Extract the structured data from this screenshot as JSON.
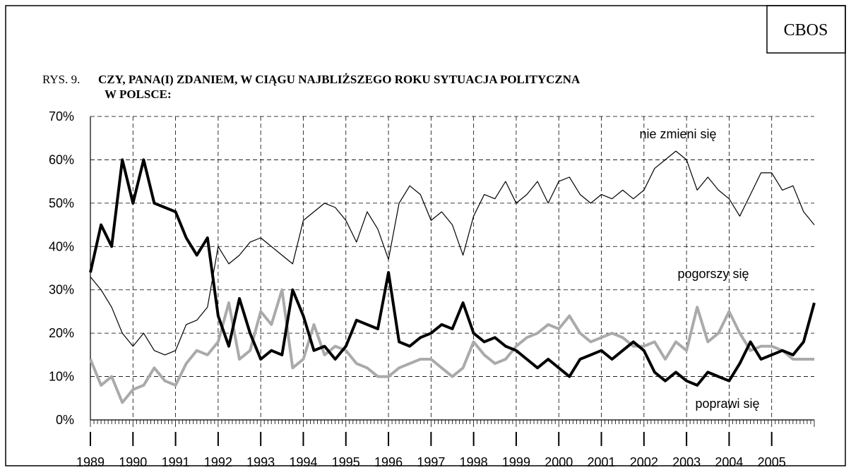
{
  "source": "CBOS",
  "chart_data": {
    "type": "line",
    "figure_label": "RYS. 9.",
    "title": [
      "CZY, PANA(I) ZDANIEM, W CIĄGU NAJBLIŻSZEGO ROKU SYTUACJA POLITYCZNA",
      "W POLSCE:"
    ],
    "x": [
      1989,
      1989.25,
      1989.5,
      1989.75,
      1990,
      1990.25,
      1990.5,
      1990.75,
      1991,
      1991.25,
      1991.5,
      1991.75,
      1992,
      1992.25,
      1992.5,
      1992.75,
      1993,
      1993.25,
      1993.5,
      1993.75,
      1994,
      1994.25,
      1994.5,
      1994.75,
      1995,
      1995.25,
      1995.5,
      1995.75,
      1996,
      1996.25,
      1996.5,
      1996.75,
      1997,
      1997.25,
      1997.5,
      1997.75,
      1998,
      1998.25,
      1998.5,
      1998.75,
      1999,
      1999.25,
      1999.5,
      1999.75,
      2000,
      2000.25,
      2000.5,
      2000.75,
      2001,
      2001.25,
      2001.5,
      2001.75,
      2002,
      2002.25,
      2002.5,
      2002.75,
      2003,
      2003.25,
      2003.5,
      2003.75,
      2004,
      2004.25,
      2004.5,
      2004.75,
      2005,
      2005.25,
      2005.5,
      2005.75,
      2006
    ],
    "series": [
      {
        "name": "nie zmieni się",
        "color": "#000000",
        "line_width": 1.2,
        "values": [
          33,
          30,
          26,
          20,
          17,
          20,
          16,
          15,
          16,
          22,
          23,
          26,
          40,
          36,
          38,
          41,
          42,
          40,
          38,
          36,
          46,
          48,
          50,
          49,
          46,
          41,
          48,
          44,
          37,
          50,
          54,
          52,
          46,
          48,
          45,
          38,
          47,
          52,
          51,
          55,
          50,
          52,
          55,
          50,
          55,
          56,
          52,
          50,
          52,
          51,
          53,
          51,
          53,
          58,
          60,
          62,
          60,
          53,
          56,
          53,
          51,
          47,
          52,
          57,
          57,
          53,
          54,
          48,
          45
        ]
      },
      {
        "name": "pogorszy się",
        "color": "#000000",
        "line_width": 4,
        "values": [
          34,
          45,
          40,
          60,
          50,
          60,
          50,
          49,
          48,
          42,
          38,
          42,
          24,
          17,
          28,
          20,
          14,
          16,
          15,
          30,
          24,
          16,
          17,
          14,
          17,
          23,
          22,
          21,
          34,
          18,
          17,
          19,
          20,
          22,
          21,
          27,
          20,
          18,
          19,
          17,
          16,
          14,
          12,
          14,
          12,
          10,
          14,
          15,
          16,
          14,
          16,
          18,
          16,
          11,
          9,
          11,
          9,
          8,
          11,
          10,
          9,
          13,
          18,
          14,
          15,
          16,
          15,
          18,
          27
        ]
      },
      {
        "name": "poprawi się",
        "color": "#aaaaaa",
        "line_width": 4,
        "values": [
          14,
          8,
          10,
          4,
          7,
          8,
          12,
          9,
          8,
          13,
          16,
          15,
          18,
          27,
          14,
          16,
          25,
          22,
          30,
          12,
          14,
          22,
          15,
          17,
          16,
          13,
          12,
          10,
          10,
          12,
          13,
          14,
          14,
          12,
          10,
          12,
          18,
          15,
          13,
          14,
          17,
          19,
          20,
          22,
          21,
          24,
          20,
          18,
          19,
          20,
          19,
          17,
          17,
          18,
          14,
          18,
          16,
          26,
          18,
          20,
          25,
          20,
          16,
          17,
          17,
          16,
          14,
          14,
          14
        ]
      }
    ],
    "xlim": [
      1989,
      2006
    ],
    "xticks": [
      1989,
      1990,
      1991,
      1992,
      1993,
      1994,
      1995,
      1996,
      1997,
      1998,
      1999,
      2000,
      2001,
      2002,
      2003,
      2004,
      2005
    ],
    "ylim": [
      0,
      70
    ],
    "yticks": [
      {
        "value": 0,
        "label": "0%"
      },
      {
        "value": 10,
        "label": "10%"
      },
      {
        "value": 20,
        "label": "20%"
      },
      {
        "value": 30,
        "label": "30%"
      },
      {
        "value": 40,
        "label": "40%"
      },
      {
        "value": 50,
        "label": "50%"
      },
      {
        "value": 60,
        "label": "60%"
      },
      {
        "value": 70,
        "label": "70%"
      }
    ],
    "grid": true
  }
}
